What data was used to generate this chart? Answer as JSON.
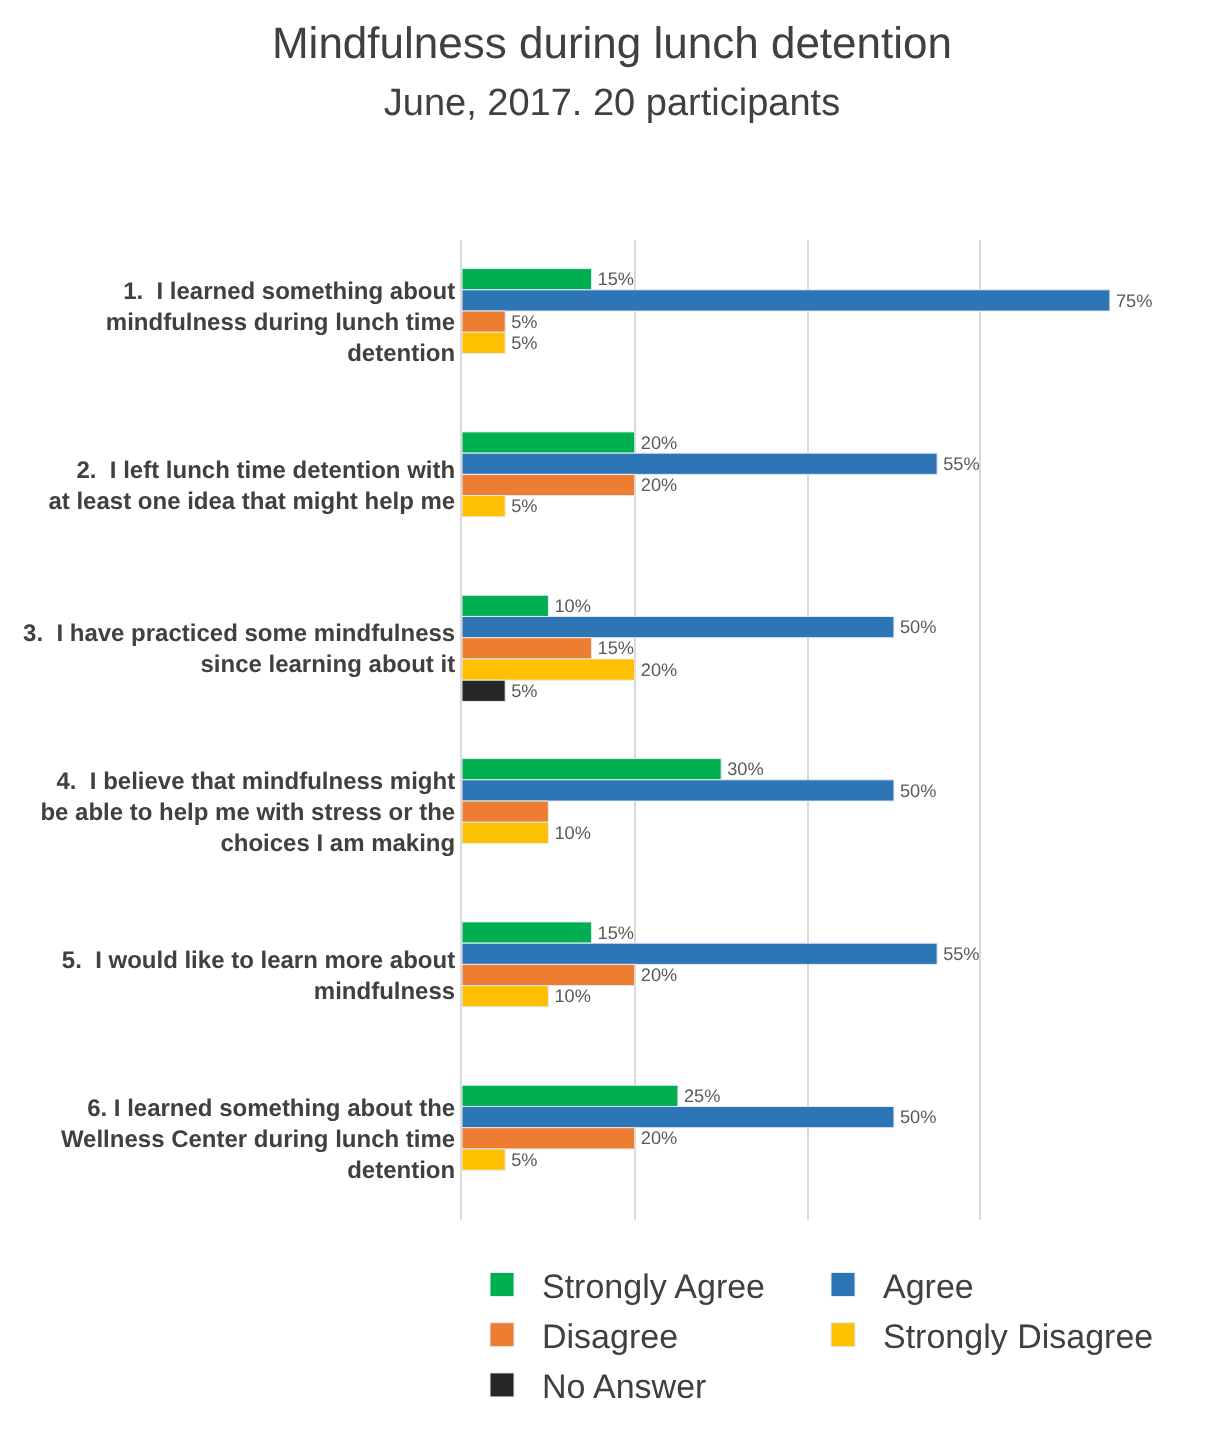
{
  "chart_data": {
    "type": "bar",
    "orientation": "horizontal",
    "title": "Mindfulness during lunch detention",
    "subtitle": "June, 2017. 20 participants",
    "categories": [
      "1.  I learned something about mindfulness during lunch time detention",
      "2.  I left lunch time detention with at least one idea that might help me",
      "3.  I have practiced some mindfulness since learning about it",
      "4.  I believe that mindfulness might be able to help me with stress or the choices I am making",
      "5.  I would like to learn more about mindfulness",
      "6. I learned something about the Wellness Center during lunch time detention"
    ],
    "series": [
      {
        "name": "Strongly Agree",
        "color": "#00b050",
        "values": [
          15,
          20,
          10,
          30,
          15,
          25
        ],
        "value_labels": [
          "15%",
          "20%",
          "10%",
          "30%",
          "15%",
          "25%"
        ]
      },
      {
        "name": "Agree",
        "color": "#2e75b6",
        "values": [
          75,
          55,
          50,
          50,
          55,
          50
        ],
        "value_labels": [
          "75%",
          "55%",
          "50%",
          "50%",
          "55%",
          "50%"
        ]
      },
      {
        "name": "Disagree",
        "color": "#ed7d31",
        "values": [
          5,
          20,
          15,
          10,
          20,
          20
        ],
        "value_labels": [
          "5%",
          "20%",
          "15%",
          null,
          "20%",
          "20%"
        ]
      },
      {
        "name": "Strongly Disagree",
        "color": "#ffc000",
        "values": [
          5,
          5,
          20,
          10,
          10,
          5
        ],
        "value_labels": [
          "5%",
          "5%",
          "20%",
          "10%",
          "10%",
          "5%"
        ]
      },
      {
        "name": "No Answer",
        "color": "#262626",
        "values": [
          null,
          null,
          5,
          null,
          null,
          null
        ],
        "value_labels": [
          null,
          null,
          "5%",
          null,
          null,
          null
        ]
      }
    ],
    "tick_labels": false,
    "grid": "x",
    "legend": "bottom"
  }
}
